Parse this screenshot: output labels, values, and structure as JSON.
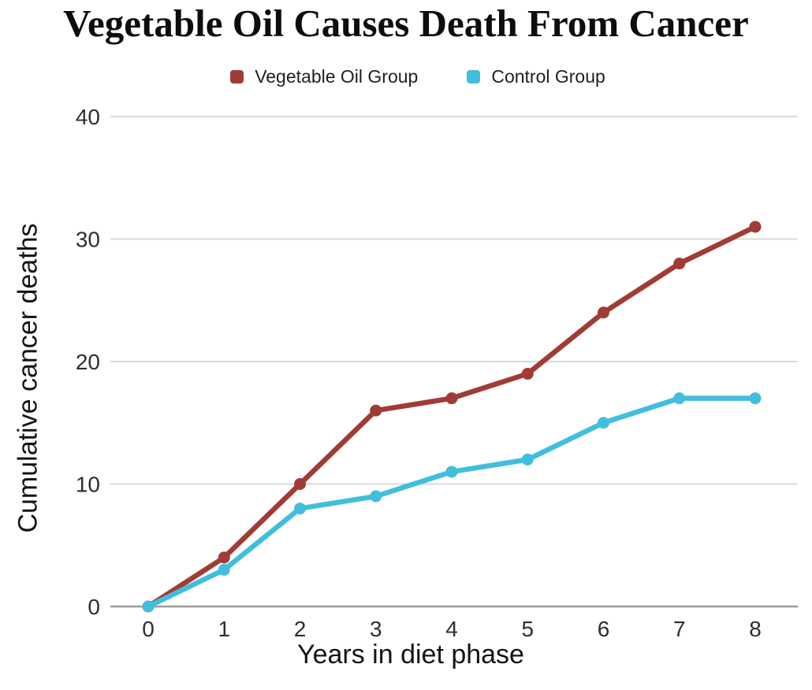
{
  "title": "Vegetable Oil Causes Death From Cancer",
  "chart_data": {
    "type": "line",
    "title": "Vegetable Oil Causes Death From Cancer",
    "x": [
      0,
      1,
      2,
      3,
      4,
      5,
      6,
      7,
      8
    ],
    "xtick_labels": [
      "0",
      "1",
      "2",
      "3",
      "4",
      "5",
      "6",
      "7",
      "8"
    ],
    "series": [
      {
        "name": "Vegetable Oil Group",
        "color": "#a03c35",
        "values": [
          0,
          4,
          10,
          16,
          17,
          19,
          24,
          28,
          31
        ]
      },
      {
        "name": "Control Group",
        "color": "#42bedd",
        "values": [
          0,
          3,
          8,
          9,
          11,
          12,
          15,
          17,
          17
        ]
      }
    ],
    "xlabel": "Years in diet phase",
    "ylabel": "Cumulative cancer deaths",
    "ylim": [
      0,
      40
    ],
    "yticks": [
      0,
      10,
      20,
      30,
      40
    ],
    "grid": "horizontal",
    "gridline_color": "#d9d9d9",
    "baseline_color": "#9b9b9b",
    "legend_position": "top",
    "background_color": "#ffffff"
  }
}
